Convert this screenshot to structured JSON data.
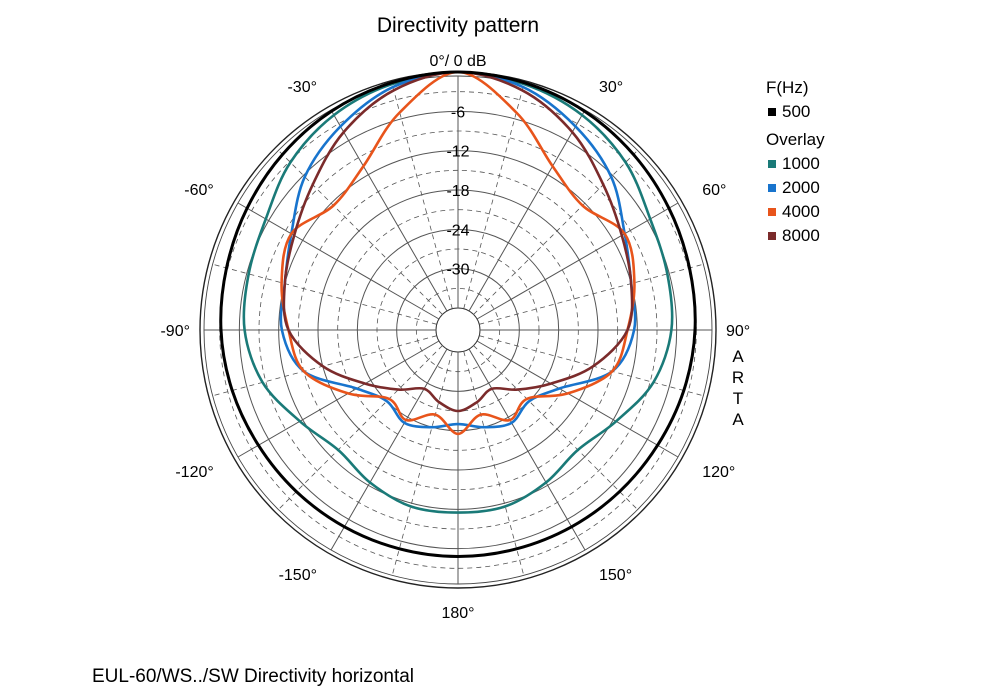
{
  "title": "Directivity pattern",
  "caption": "EUL-60/WS../SW Directivity horizontal",
  "watermark": "ARTA",
  "legend": {
    "main_heading": "F(Hz)",
    "overlay_heading": "Overlay"
  },
  "chart_data": {
    "type": "polar",
    "title": "Directivity pattern",
    "radial_unit": "dB",
    "radial_range": [
      -36,
      0
    ],
    "radial_ticks": [
      "0°/ 0 dB",
      "-6",
      "-12",
      "-18",
      "-24",
      "-30"
    ],
    "angle_labels": [
      "0°/ 0 dB",
      "30°",
      "60°",
      "90°",
      "120°",
      "150°",
      "180°",
      "-150°",
      "-120°",
      "-90°",
      "-60°",
      "-30°"
    ],
    "grid": true,
    "legend_position": "right",
    "angles_deg": [
      0,
      15,
      30,
      45,
      60,
      75,
      90,
      105,
      120,
      135,
      150,
      165,
      180
    ],
    "series": [
      {
        "name": "500",
        "group": "F(Hz)",
        "color": "#000000",
        "values": [
          0,
          -0.3,
          -0.8,
          -1.5,
          -2.2,
          -2.8,
          -3.2,
          -3.7,
          -4.2,
          -4.5,
          -4.7,
          -4.8,
          -4.8
        ]
      },
      {
        "name": "1000",
        "group": "Overlay",
        "color": "#1a7a78",
        "values": [
          0,
          -0.5,
          -1.5,
          -3.2,
          -5.5,
          -6.3,
          -6.8,
          -8.5,
          -11.5,
          -13.5,
          -12.5,
          -11.5,
          -11.5
        ]
      },
      {
        "name": "2000",
        "group": "Overlay",
        "color": "#1874cd",
        "values": [
          0,
          -1.0,
          -3.5,
          -6.3,
          -10.0,
          -12.0,
          -12.5,
          -15.0,
          -21.5,
          -24.0,
          -23.0,
          -24.0,
          -25.0
        ]
      },
      {
        "name": "4000",
        "group": "Overlay",
        "color": "#e8541b",
        "values": [
          0,
          -5.0,
          -10.5,
          -12.5,
          -10.0,
          -11.5,
          -13.5,
          -15.0,
          -20.0,
          -24.5,
          -23.5,
          -26.0,
          -23.5
        ]
      },
      {
        "name": "8000",
        "group": "Overlay",
        "color": "#7b2b2b",
        "values": [
          0,
          -1.5,
          -4.5,
          -8.0,
          -10.5,
          -12.0,
          -13.5,
          -18.0,
          -23.0,
          -26.5,
          -29.0,
          -28.0,
          -27.0
        ]
      }
    ]
  }
}
